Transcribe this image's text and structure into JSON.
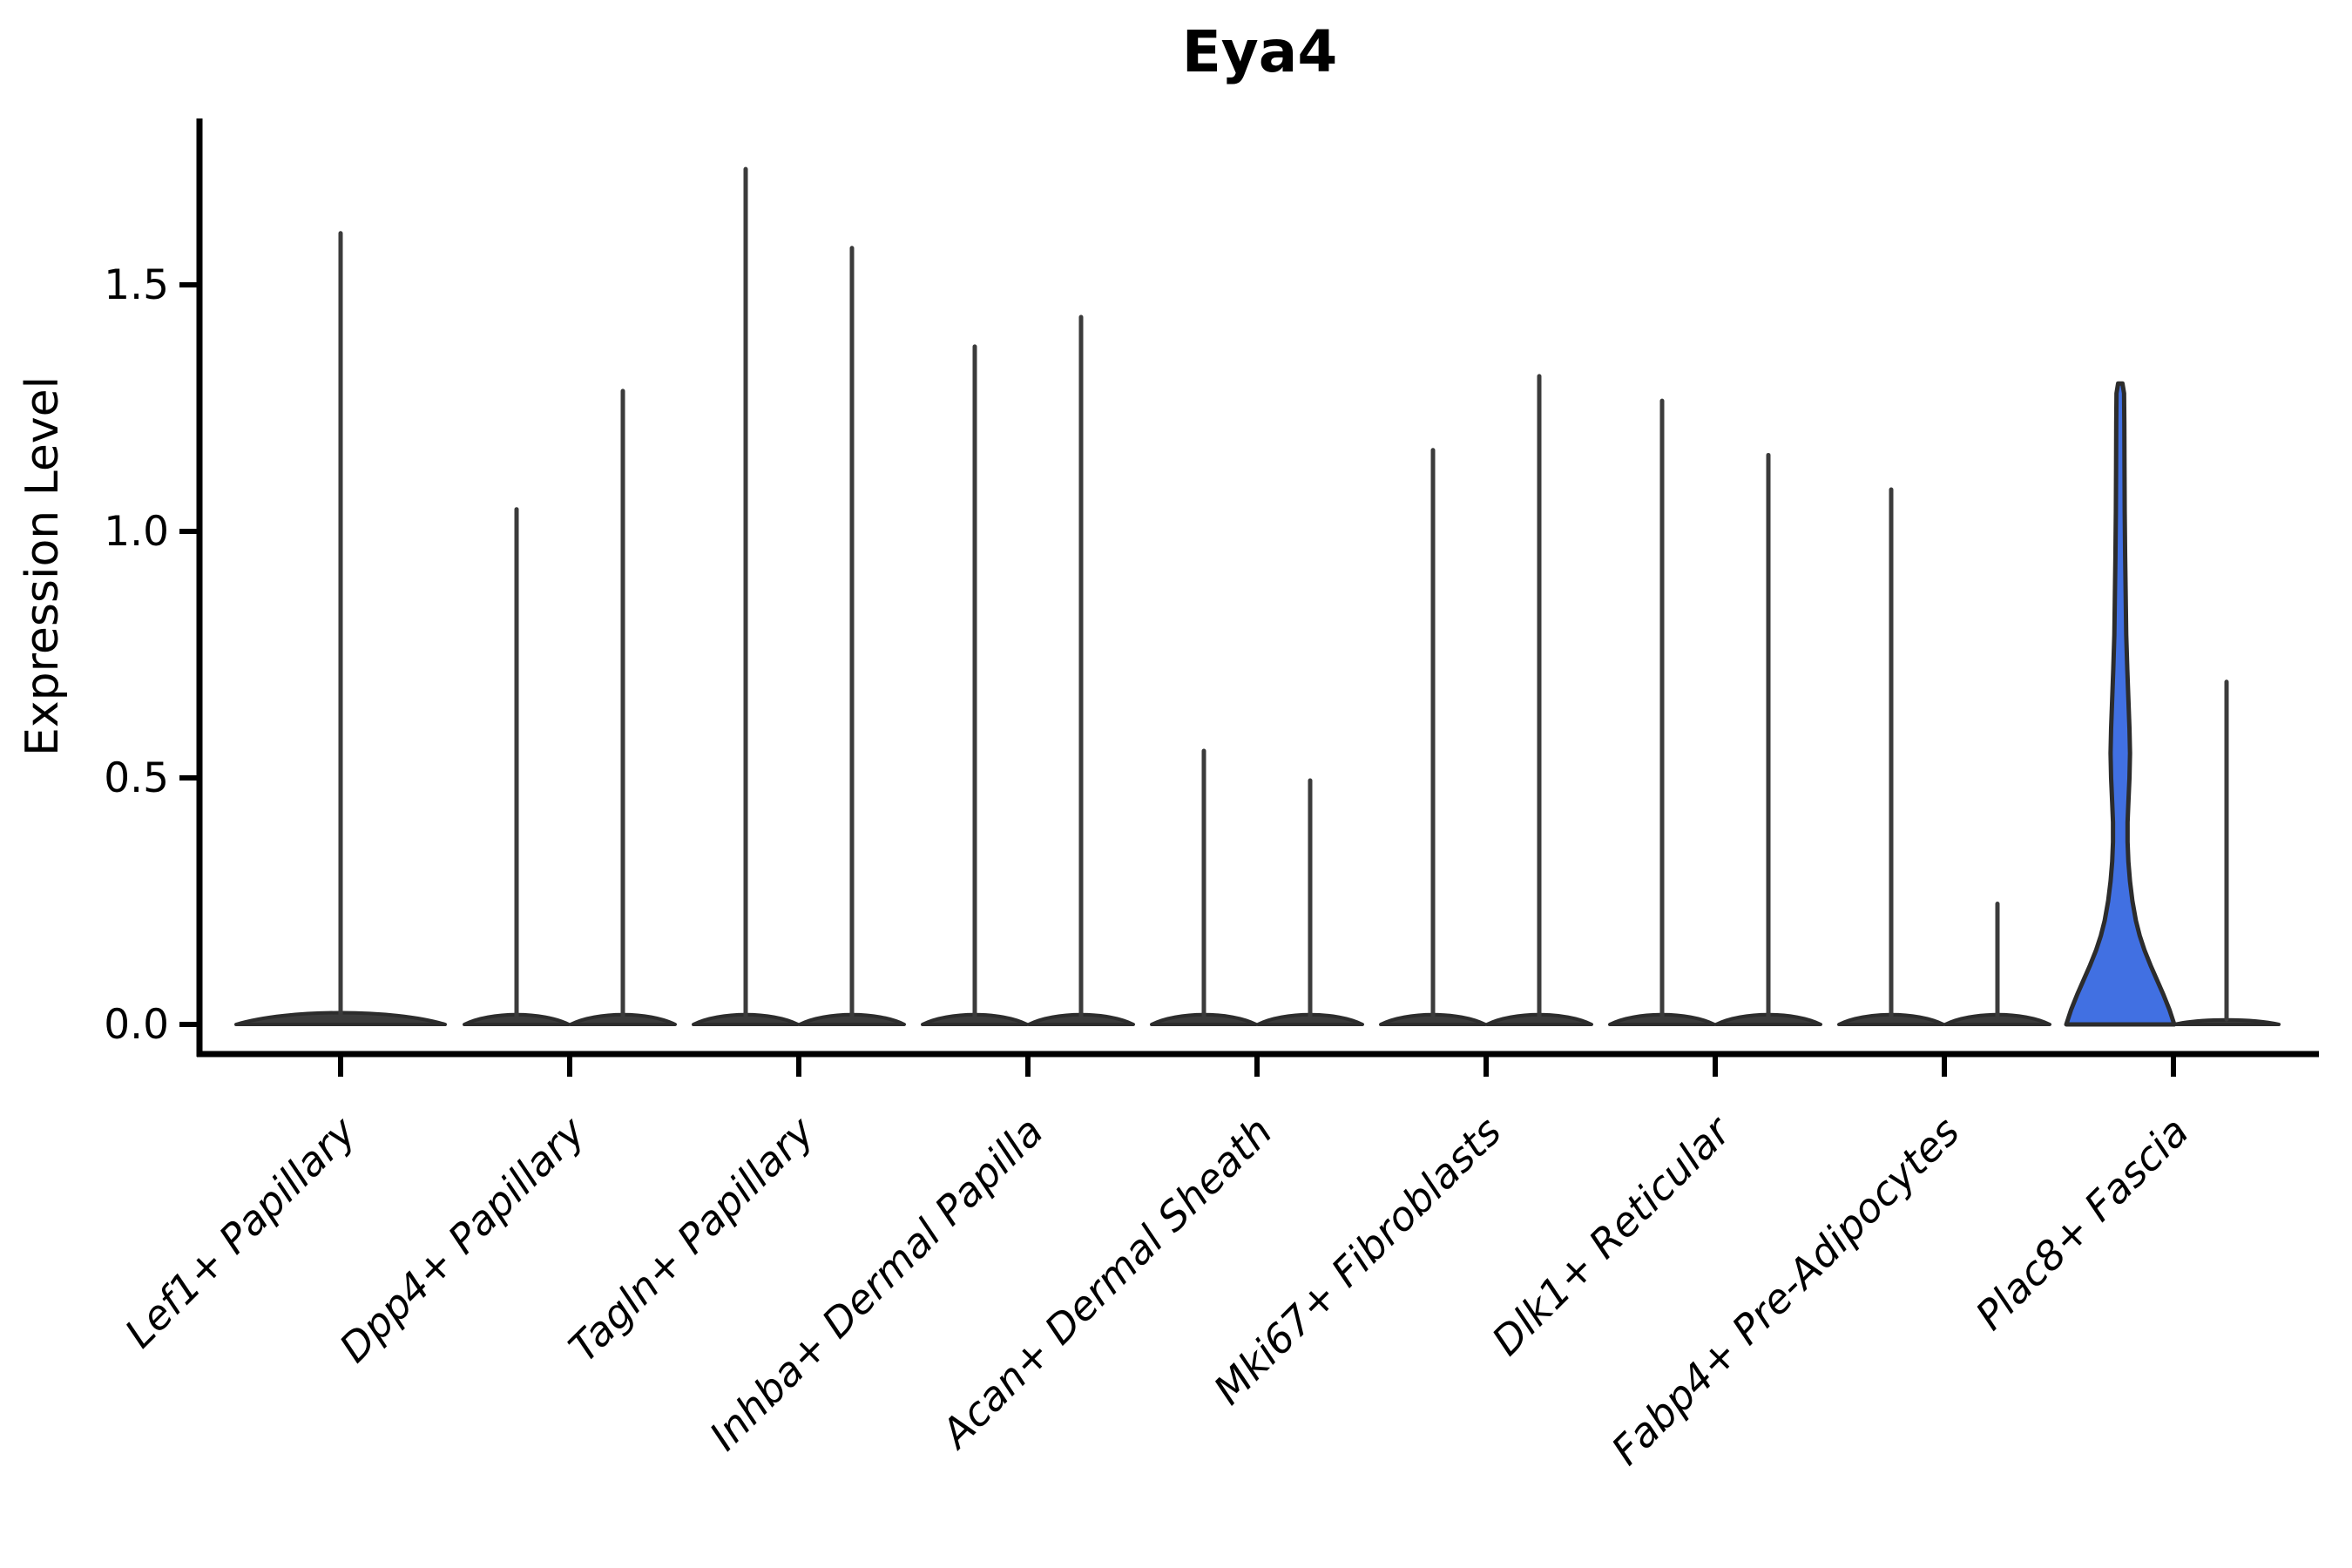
{
  "figure": {
    "background": "#ffffff"
  },
  "chart_data": {
    "type": "violin",
    "title": "Eya4",
    "xlabel": "",
    "ylabel": "Expression Level",
    "ytick_labels": [
      "0.0",
      "0.5",
      "1.0",
      "1.5"
    ],
    "ytick_values": [
      0.0,
      0.5,
      1.0,
      1.5
    ],
    "ylim": [
      -0.09,
      1.83
    ],
    "grid": false,
    "legend": "none",
    "categories": [
      "Lef1+ Papillary",
      "Dpp4+ Papillary",
      "Tagln+ Papillary",
      "Inhba+ Dermal Papilla",
      "Acan+ Dermal Sheath",
      "Mki67+ Fibroblasts",
      "Dlk1+ Reticular",
      "Fabp4+ Pre-Adipocytes",
      "Plac8+ Fascia"
    ],
    "colors": {
      "violin_dark": "#3B3B3B",
      "violin_outline": "#2C2C2C",
      "highlight_blue": "#4170E2",
      "axis": "#000000"
    },
    "violins": [
      {
        "category": "Lef1+ Papillary",
        "slot": 1,
        "position": "center",
        "max_expression": 1.61,
        "style": "dark",
        "base": "wide"
      },
      {
        "category": "Dpp4+ Papillary",
        "slot": 2,
        "position": "left",
        "max_expression": 1.05,
        "style": "dark",
        "base": "normal"
      },
      {
        "category": "Dpp4+ Papillary",
        "slot": 2,
        "position": "right",
        "max_expression": 1.29,
        "style": "dark",
        "base": "normal"
      },
      {
        "category": "Tagln+ Papillary",
        "slot": 3,
        "position": "left",
        "max_expression": 1.74,
        "style": "dark",
        "base": "normal"
      },
      {
        "category": "Tagln+ Papillary",
        "slot": 3,
        "position": "right",
        "max_expression": 1.58,
        "style": "dark",
        "base": "normal"
      },
      {
        "category": "Inhba+ Dermal Papilla",
        "slot": 4,
        "position": "left",
        "max_expression": 1.38,
        "style": "dark",
        "base": "normal"
      },
      {
        "category": "Inhba+ Dermal Papilla",
        "slot": 4,
        "position": "right",
        "max_expression": 1.44,
        "style": "dark",
        "base": "normal"
      },
      {
        "category": "Acan+ Dermal Sheath",
        "slot": 5,
        "position": "left",
        "max_expression": 0.56,
        "style": "dark",
        "base": "normal"
      },
      {
        "category": "Acan+ Dermal Sheath",
        "slot": 5,
        "position": "right",
        "max_expression": 0.5,
        "style": "dark",
        "base": "normal"
      },
      {
        "category": "Mki67+ Fibroblasts",
        "slot": 6,
        "position": "left",
        "max_expression": 1.17,
        "style": "dark",
        "base": "normal"
      },
      {
        "category": "Mki67+ Fibroblasts",
        "slot": 6,
        "position": "right",
        "max_expression": 1.32,
        "style": "dark",
        "base": "normal"
      },
      {
        "category": "Dlk1+ Reticular",
        "slot": 7,
        "position": "left",
        "max_expression": 1.27,
        "style": "dark",
        "base": "normal"
      },
      {
        "category": "Dlk1+ Reticular",
        "slot": 7,
        "position": "right",
        "max_expression": 1.16,
        "style": "dark",
        "base": "normal"
      },
      {
        "category": "Fabp4+ Pre-Adipocytes",
        "slot": 8,
        "position": "left",
        "max_expression": 1.09,
        "style": "dark",
        "base": "normal"
      },
      {
        "category": "Fabp4+ Pre-Adipocytes",
        "slot": 8,
        "position": "right",
        "max_expression": 0.25,
        "style": "dark",
        "base": "normal"
      },
      {
        "category": "Plac8+ Fascia",
        "slot": 9,
        "position": "left",
        "max_expression": 1.3,
        "style": "blue",
        "base": "blue",
        "kde_profile": [
          [
            0.0,
            1.0
          ],
          [
            0.03,
            0.91
          ],
          [
            0.06,
            0.8
          ],
          [
            0.09,
            0.68
          ],
          [
            0.12,
            0.56
          ],
          [
            0.15,
            0.45
          ],
          [
            0.18,
            0.36
          ],
          [
            0.21,
            0.29
          ],
          [
            0.25,
            0.225
          ],
          [
            0.29,
            0.18
          ],
          [
            0.33,
            0.15
          ],
          [
            0.37,
            0.135
          ],
          [
            0.41,
            0.135
          ],
          [
            0.45,
            0.15
          ],
          [
            0.5,
            0.17
          ],
          [
            0.55,
            0.18
          ],
          [
            0.6,
            0.17
          ],
          [
            0.66,
            0.15
          ],
          [
            0.72,
            0.13
          ],
          [
            0.79,
            0.11
          ],
          [
            0.87,
            0.1
          ],
          [
            0.95,
            0.09
          ],
          [
            1.04,
            0.082
          ],
          [
            1.13,
            0.078
          ],
          [
            1.22,
            0.075
          ],
          [
            1.28,
            0.07
          ],
          [
            1.3,
            0.04
          ]
        ]
      },
      {
        "category": "Plac8+ Fascia",
        "slot": 9,
        "position": "right",
        "max_expression": 0.7,
        "style": "dark",
        "base": "thin"
      }
    ]
  }
}
